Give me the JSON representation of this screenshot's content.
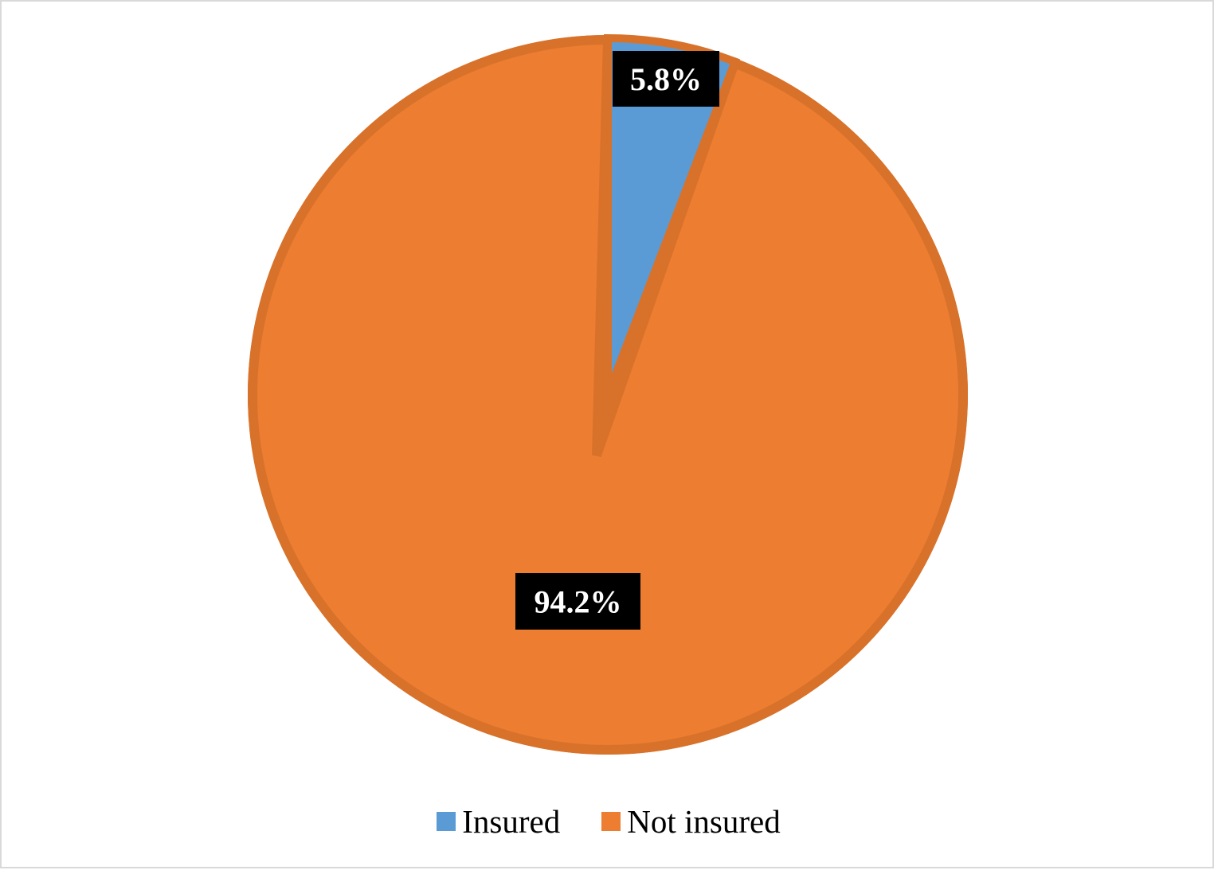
{
  "chart_data": {
    "type": "pie",
    "title": "",
    "slices": [
      {
        "label": "Insured",
        "value": 5.8,
        "display": "5.8%",
        "color": "#5b9bd5"
      },
      {
        "label": "Not insured",
        "value": 94.2,
        "display": "94.2%",
        "color": "#ed7d31"
      }
    ],
    "start_angle": "12 o'clock",
    "direction": "clockwise",
    "legend_position": "bottom",
    "slice_border_color": "#d8722a"
  }
}
